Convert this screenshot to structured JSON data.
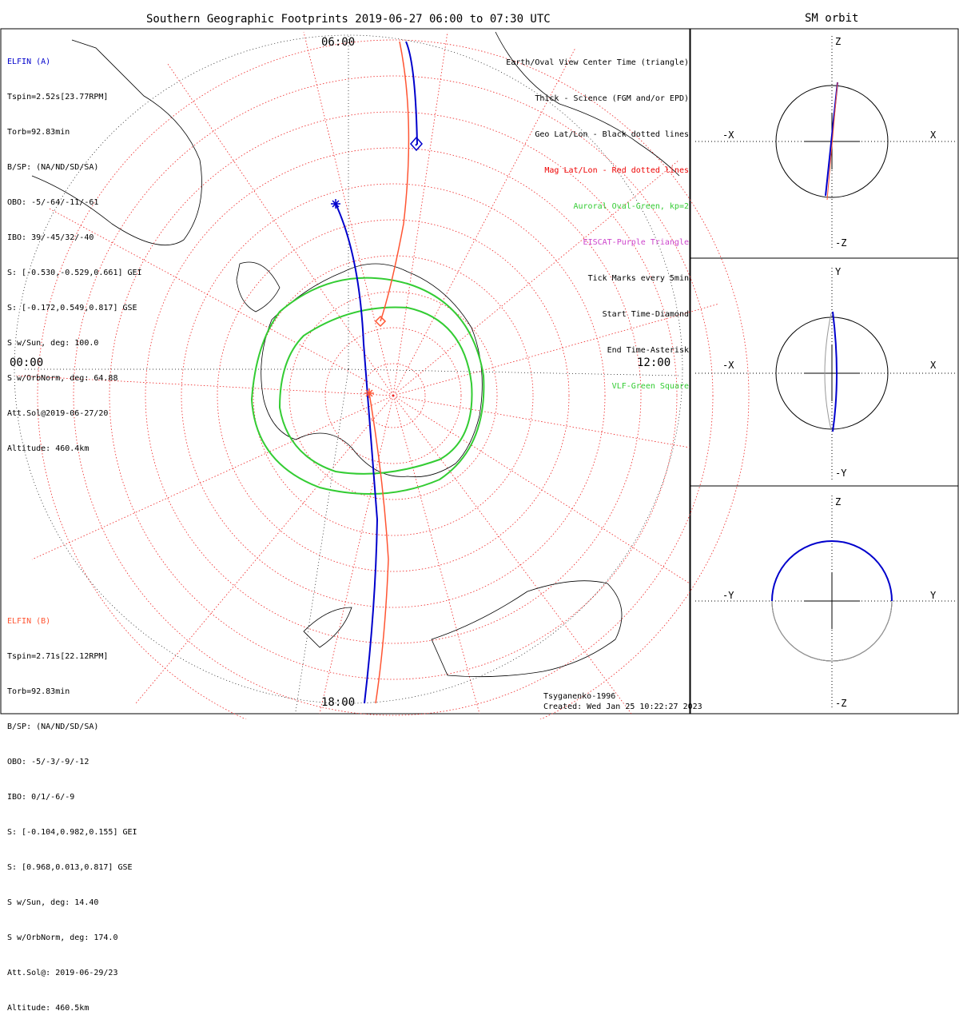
{
  "title": "Southern Geographic Footprints 2019-06-27 06:00 to 07:30 UTC",
  "orbit_title": "SM orbit",
  "elfin_a": {
    "name": "ELFIN (A)",
    "lines": [
      "Tspin=2.52s[23.77RPM]",
      "Torb=92.83min",
      "B/SP: (NA/ND/SD/SA)",
      "OBO: -5/-64/-11/-61",
      "IBO: 39/-45/32/-40",
      "S: [-0.530,-0.529,0.661] GEI",
      "S: [-0.172,0.549,0.817] GSE",
      "S w/Sun, deg: 100.0",
      "S w/OrbNorm, deg: 64.88",
      "Att.Sol@2019-06-27/20",
      "Altitude: 460.4km"
    ],
    "color": "#0000cc"
  },
  "elfin_b": {
    "name": "ELFIN (B)",
    "lines": [
      "Tspin=2.71s[22.12RPM]",
      "Torb=92.83min",
      "B/SP: (NA/ND/SD/SA)",
      "OBO: -5/-3/-9/-12",
      "IBO: 0/1/-6/-9",
      "S: [-0.104,0.982,0.155] GEI",
      "S: [0.968,0.013,0.817] GSE",
      "S w/Sun, deg: 14.40",
      "S w/OrbNorm, deg: 174.0",
      "Att.Sol@: 2019-06-29/23",
      "Altitude: 460.5km"
    ],
    "color": "#ff5533"
  },
  "legend": [
    {
      "text": "Earth/Oval View Center Time (triangle)",
      "color": "#000000"
    },
    {
      "text": "Thick - Science (FGM and/or EPD)",
      "color": "#000000"
    },
    {
      "text": "Geo Lat/Lon - Black dotted lines",
      "color": "#000000"
    },
    {
      "text": "Mag Lat/Lon - Red dotted lines",
      "color": "#ee0000"
    },
    {
      "text": "Auroral Oval-Green, kp=2",
      "color": "#33cc33"
    },
    {
      "text": "EISCAT-Purple Triangle",
      "color": "#cc44cc"
    },
    {
      "text": "Tick Marks every 5min",
      "color": "#000000"
    },
    {
      "text": "Start Time-Diamond",
      "color": "#000000"
    },
    {
      "text": "End Time-Asterisk",
      "color": "#000000"
    },
    {
      "text": "VLF-Green Square",
      "color": "#33cc33"
    }
  ],
  "map_times": {
    "top": "06:00",
    "left": "00:00",
    "right": "12:00",
    "bottom": "18:00"
  },
  "footer": {
    "model": "Tsyganenko-1996",
    "created": "Created: Wed Jan 25 10:22:27 2023"
  },
  "panels": [
    {
      "up": "Z",
      "down": "-Z",
      "left": "-X",
      "right": "X"
    },
    {
      "up": "Y",
      "down": "-Y",
      "left": "-X",
      "right": "X"
    },
    {
      "up": "Z",
      "down": "-Z",
      "left": "-Y",
      "right": "Y"
    }
  ]
}
